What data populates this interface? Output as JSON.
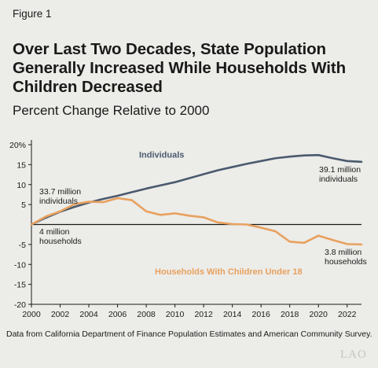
{
  "figure_label": "Figure 1",
  "title": "Over Last Two Decades, State Population Generally Increased While Households With Children Decreased",
  "subtitle": "Percent Change Relative to 2000",
  "source": "Data from California Department of Finance Population Estimates and American Community Survey.",
  "logo": "LAO",
  "colors": {
    "individuals": "#4a5a6e",
    "households": "#e8a15e",
    "axis": "#1a1a1a",
    "background": "#ecece9"
  },
  "chart_data": {
    "type": "line",
    "x": [
      2000,
      2001,
      2002,
      2003,
      2004,
      2005,
      2006,
      2007,
      2008,
      2009,
      2010,
      2011,
      2012,
      2013,
      2014,
      2015,
      2016,
      2017,
      2018,
      2019,
      2020,
      2021,
      2022,
      2023
    ],
    "series": [
      {
        "name": "Individuals",
        "values": [
          0,
          1.7,
          3.2,
          4.4,
          5.5,
          6.4,
          7.2,
          8.1,
          9.0,
          9.8,
          10.6,
          11.6,
          12.6,
          13.6,
          14.4,
          15.2,
          15.9,
          16.6,
          17.0,
          17.3,
          17.4,
          16.6,
          15.9,
          15.7
        ]
      },
      {
        "name": "Households With Children Under 18",
        "values": [
          0,
          2.0,
          3.3,
          5.1,
          5.7,
          5.6,
          6.6,
          6.1,
          3.3,
          2.4,
          2.8,
          2.2,
          1.8,
          0.5,
          0.1,
          0,
          -0.8,
          -1.7,
          -4.3,
          -4.6,
          -2.8,
          -3.9,
          -4.9,
          -5.0
        ]
      }
    ],
    "xlim": [
      2000,
      2023
    ],
    "ylim": [
      -20,
      20
    ],
    "xticks": [
      "2000",
      "2002",
      "2004",
      "2006",
      "2008",
      "2010",
      "2012",
      "2014",
      "2016",
      "2018",
      "2020",
      "2022"
    ],
    "yticks": [
      "20%",
      "15",
      "10",
      "5",
      "-5",
      "-10",
      "-15",
      "-20"
    ],
    "series_labels": {
      "individuals": "Individuals",
      "households": "Households With Children Under 18"
    },
    "annotations": {
      "ind_start": [
        "33.7 million",
        "individuals"
      ],
      "ind_end": [
        "39.1 million",
        "individuals"
      ],
      "hh_start": [
        "4 million",
        "households"
      ],
      "hh_end": [
        "3.8 million",
        "households"
      ]
    },
    "grid": false
  }
}
